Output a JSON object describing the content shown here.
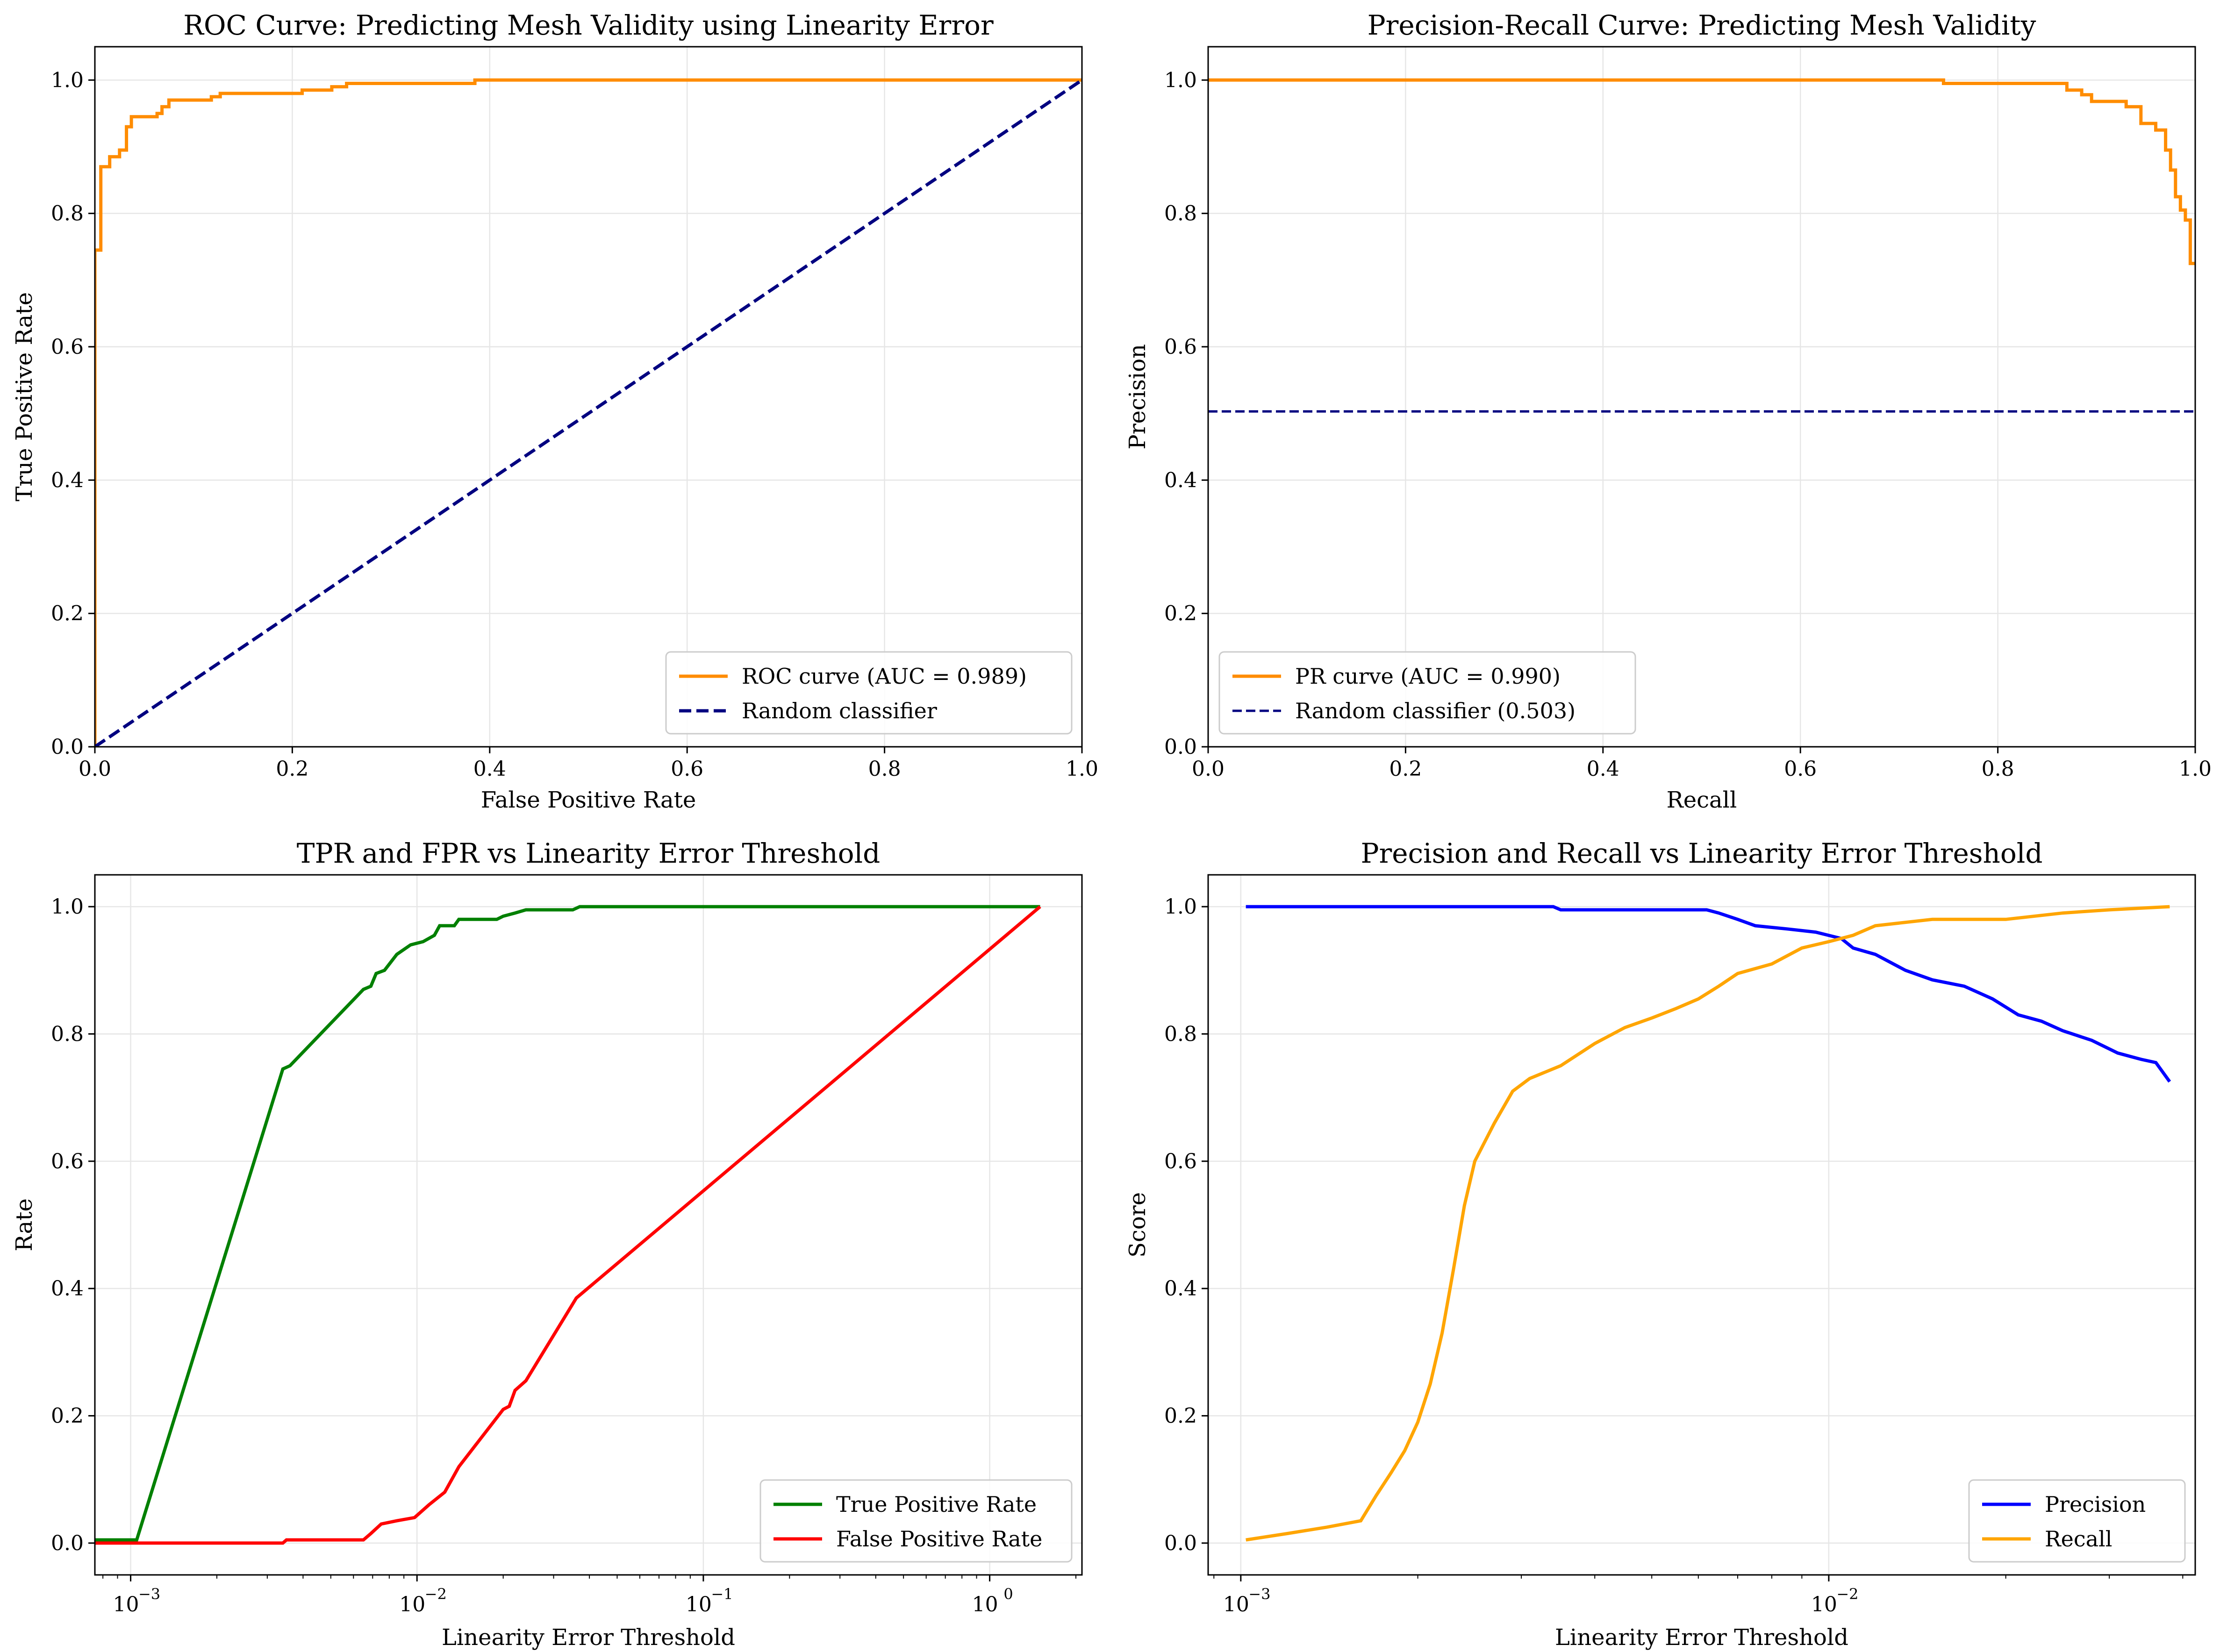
{
  "colors": {
    "orange": "#FF8C00",
    "navy": "#000080",
    "green": "#008000",
    "red": "#FF0000",
    "blue": "#0000FF",
    "amber": "#FFA500",
    "grid": "#E6E6E6"
  },
  "chart_data": [
    {
      "type": "line",
      "title": "ROC Curve: Predicting Mesh Validity using Linearity Error",
      "xlabel": "False Positive Rate",
      "ylabel": "True Positive Rate",
      "xlim": [
        0,
        1
      ],
      "ylim": [
        0,
        1.05
      ],
      "xscale": "linear",
      "xticks": [
        0,
        0.2,
        0.4,
        0.6,
        0.8,
        1.0
      ],
      "xticklabels": [
        "0.0",
        "0.2",
        "0.4",
        "0.6",
        "0.8",
        "1.0"
      ],
      "yticks": [
        0,
        0.2,
        0.4,
        0.6,
        0.8,
        1.0
      ],
      "yticklabels": [
        "0.0",
        "0.2",
        "0.4",
        "0.6",
        "0.8",
        "1.0"
      ],
      "grid": true,
      "legend_loc": "lower-right",
      "series": [
        {
          "name": "ROC curve (AUC = 0.989)",
          "color": "orange",
          "dash": "solid",
          "step": true,
          "x": [
            0,
            0,
            0.006,
            0.006,
            0.015,
            0.015,
            0.025,
            0.025,
            0.032,
            0.032,
            0.037,
            0.037,
            0.063,
            0.063,
            0.068,
            0.068,
            0.075,
            0.075,
            0.118,
            0.118,
            0.127,
            0.127,
            0.21,
            0.21,
            0.24,
            0.24,
            0.255,
            0.255,
            0.385,
            0.385,
            1.0
          ],
          "y": [
            0,
            0.745,
            0.745,
            0.87,
            0.87,
            0.885,
            0.885,
            0.895,
            0.895,
            0.93,
            0.93,
            0.945,
            0.945,
            0.95,
            0.95,
            0.96,
            0.96,
            0.97,
            0.97,
            0.975,
            0.975,
            0.98,
            0.98,
            0.985,
            0.985,
            0.99,
            0.99,
            0.995,
            0.995,
            1.0,
            1.0
          ]
        },
        {
          "name": "Random classifier",
          "color": "navy",
          "dash": "dashed",
          "x": [
            0,
            1
          ],
          "y": [
            0,
            1
          ]
        }
      ]
    },
    {
      "type": "line",
      "title": "Precision-Recall Curve: Predicting Mesh Validity",
      "xlabel": "Recall",
      "ylabel": "Precision",
      "xlim": [
        0,
        1
      ],
      "ylim": [
        0,
        1.05
      ],
      "xscale": "linear",
      "xticks": [
        0,
        0.2,
        0.4,
        0.6,
        0.8,
        1.0
      ],
      "xticklabels": [
        "0.0",
        "0.2",
        "0.4",
        "0.6",
        "0.8",
        "1.0"
      ],
      "yticks": [
        0,
        0.2,
        0.4,
        0.6,
        0.8,
        1.0
      ],
      "yticklabels": [
        "0.0",
        "0.2",
        "0.4",
        "0.6",
        "0.8",
        "1.0"
      ],
      "grid": true,
      "legend_loc": "lower-left",
      "series": [
        {
          "name": "PR curve (AUC = 0.990)",
          "color": "orange",
          "dash": "solid",
          "step": true,
          "x": [
            0,
            0.745,
            0.745,
            0.87,
            0.87,
            0.885,
            0.885,
            0.895,
            0.895,
            0.93,
            0.93,
            0.945,
            0.945,
            0.96,
            0.96,
            0.97,
            0.97,
            0.975,
            0.975,
            0.98,
            0.98,
            0.985,
            0.985,
            0.99,
            0.99,
            0.995,
            0.995,
            1.0
          ],
          "y": [
            1.0,
            1.0,
            0.995,
            0.995,
            0.985,
            0.985,
            0.978,
            0.978,
            0.968,
            0.968,
            0.96,
            0.96,
            0.935,
            0.935,
            0.925,
            0.925,
            0.895,
            0.895,
            0.865,
            0.865,
            0.825,
            0.825,
            0.805,
            0.805,
            0.79,
            0.79,
            0.725,
            0.725
          ]
        },
        {
          "name": "Random classifier (0.503)",
          "color": "navy",
          "dash": "dashed-thin",
          "x": [
            0,
            1
          ],
          "y": [
            0.503,
            0.503
          ]
        }
      ]
    },
    {
      "type": "line",
      "title": "TPR and FPR vs Linearity Error Threshold",
      "xlabel": "Linearity Error Threshold",
      "ylabel": "Rate",
      "xlim": [
        0.00075,
        2.1
      ],
      "ylim": [
        -0.05,
        1.05
      ],
      "xscale": "log",
      "xticks": [
        0.001,
        0.01,
        0.1,
        1
      ],
      "xticklabels": [
        "10",
        "10",
        "10",
        "10"
      ],
      "xtickexps": [
        "−3",
        "−2",
        "−1",
        "0"
      ],
      "yticks": [
        0,
        0.2,
        0.4,
        0.6,
        0.8,
        1.0
      ],
      "yticklabels": [
        "0.0",
        "0.2",
        "0.4",
        "0.6",
        "0.8",
        "1.0"
      ],
      "grid": true,
      "legend_loc": "lower-right",
      "series": [
        {
          "name": "True Positive Rate",
          "color": "green",
          "dash": "solid",
          "x": [
            0.00075,
            0.00105,
            0.0034,
            0.0036,
            0.0065,
            0.0069,
            0.0072,
            0.0077,
            0.0085,
            0.0095,
            0.0105,
            0.0115,
            0.012,
            0.0135,
            0.014,
            0.019,
            0.02,
            0.022,
            0.024,
            0.035,
            0.037,
            1.5
          ],
          "y": [
            0.005,
            0.005,
            0.745,
            0.75,
            0.87,
            0.875,
            0.895,
            0.9,
            0.925,
            0.94,
            0.945,
            0.955,
            0.97,
            0.97,
            0.98,
            0.98,
            0.985,
            0.99,
            0.995,
            0.995,
            1.0,
            1.0
          ]
        },
        {
          "name": "False Positive Rate",
          "color": "red",
          "dash": "solid",
          "x": [
            0.00075,
            0.0034,
            0.0035,
            0.0065,
            0.0069,
            0.0075,
            0.0085,
            0.0098,
            0.011,
            0.0125,
            0.014,
            0.02,
            0.021,
            0.022,
            0.024,
            0.036,
            1.5
          ],
          "y": [
            0.0,
            0.0,
            0.005,
            0.005,
            0.015,
            0.03,
            0.035,
            0.04,
            0.06,
            0.08,
            0.12,
            0.21,
            0.215,
            0.24,
            0.255,
            0.385,
            1.0
          ]
        }
      ]
    },
    {
      "type": "line",
      "title": "Precision and Recall vs Linearity Error Threshold",
      "xlabel": "Linearity Error Threshold",
      "ylabel": "Score",
      "xlim": [
        0.00088,
        0.042
      ],
      "ylim": [
        -0.05,
        1.05
      ],
      "xscale": "log",
      "xticks": [
        0.001,
        0.01
      ],
      "xticklabels": [
        "10",
        "10"
      ],
      "xtickexps": [
        "−3",
        "−2"
      ],
      "yticks": [
        0,
        0.2,
        0.4,
        0.6,
        0.8,
        1.0
      ],
      "yticklabels": [
        "0.0",
        "0.2",
        "0.4",
        "0.6",
        "0.8",
        "1.0"
      ],
      "grid": true,
      "legend_loc": "lower-right",
      "series": [
        {
          "name": "Precision",
          "color": "blue",
          "dash": "solid",
          "x": [
            0.00102,
            0.0034,
            0.0035,
            0.0062,
            0.0065,
            0.007,
            0.0075,
            0.0085,
            0.0095,
            0.0105,
            0.011,
            0.012,
            0.0135,
            0.015,
            0.017,
            0.019,
            0.021,
            0.023,
            0.025,
            0.028,
            0.031,
            0.034,
            0.036,
            0.038
          ],
          "y": [
            1.0,
            1.0,
            0.995,
            0.995,
            0.99,
            0.98,
            0.97,
            0.965,
            0.96,
            0.95,
            0.935,
            0.925,
            0.9,
            0.885,
            0.875,
            0.855,
            0.83,
            0.82,
            0.805,
            0.79,
            0.77,
            0.76,
            0.755,
            0.725
          ]
        },
        {
          "name": "Recall",
          "color": "amber",
          "dash": "solid",
          "x": [
            0.00102,
            0.0012,
            0.0014,
            0.0016,
            0.0017,
            0.0018,
            0.0019,
            0.002,
            0.0021,
            0.0022,
            0.0023,
            0.0024,
            0.0025,
            0.0027,
            0.0029,
            0.0031,
            0.0035,
            0.004,
            0.0045,
            0.005,
            0.0055,
            0.006,
            0.0065,
            0.007,
            0.008,
            0.009,
            0.01,
            0.011,
            0.012,
            0.015,
            0.02,
            0.025,
            0.03,
            0.038
          ],
          "y": [
            0.005,
            0.015,
            0.025,
            0.035,
            0.075,
            0.11,
            0.145,
            0.19,
            0.25,
            0.33,
            0.43,
            0.53,
            0.6,
            0.66,
            0.71,
            0.73,
            0.75,
            0.785,
            0.81,
            0.825,
            0.84,
            0.855,
            0.875,
            0.895,
            0.91,
            0.935,
            0.945,
            0.955,
            0.97,
            0.98,
            0.98,
            0.99,
            0.995,
            1.0
          ]
        }
      ]
    }
  ]
}
